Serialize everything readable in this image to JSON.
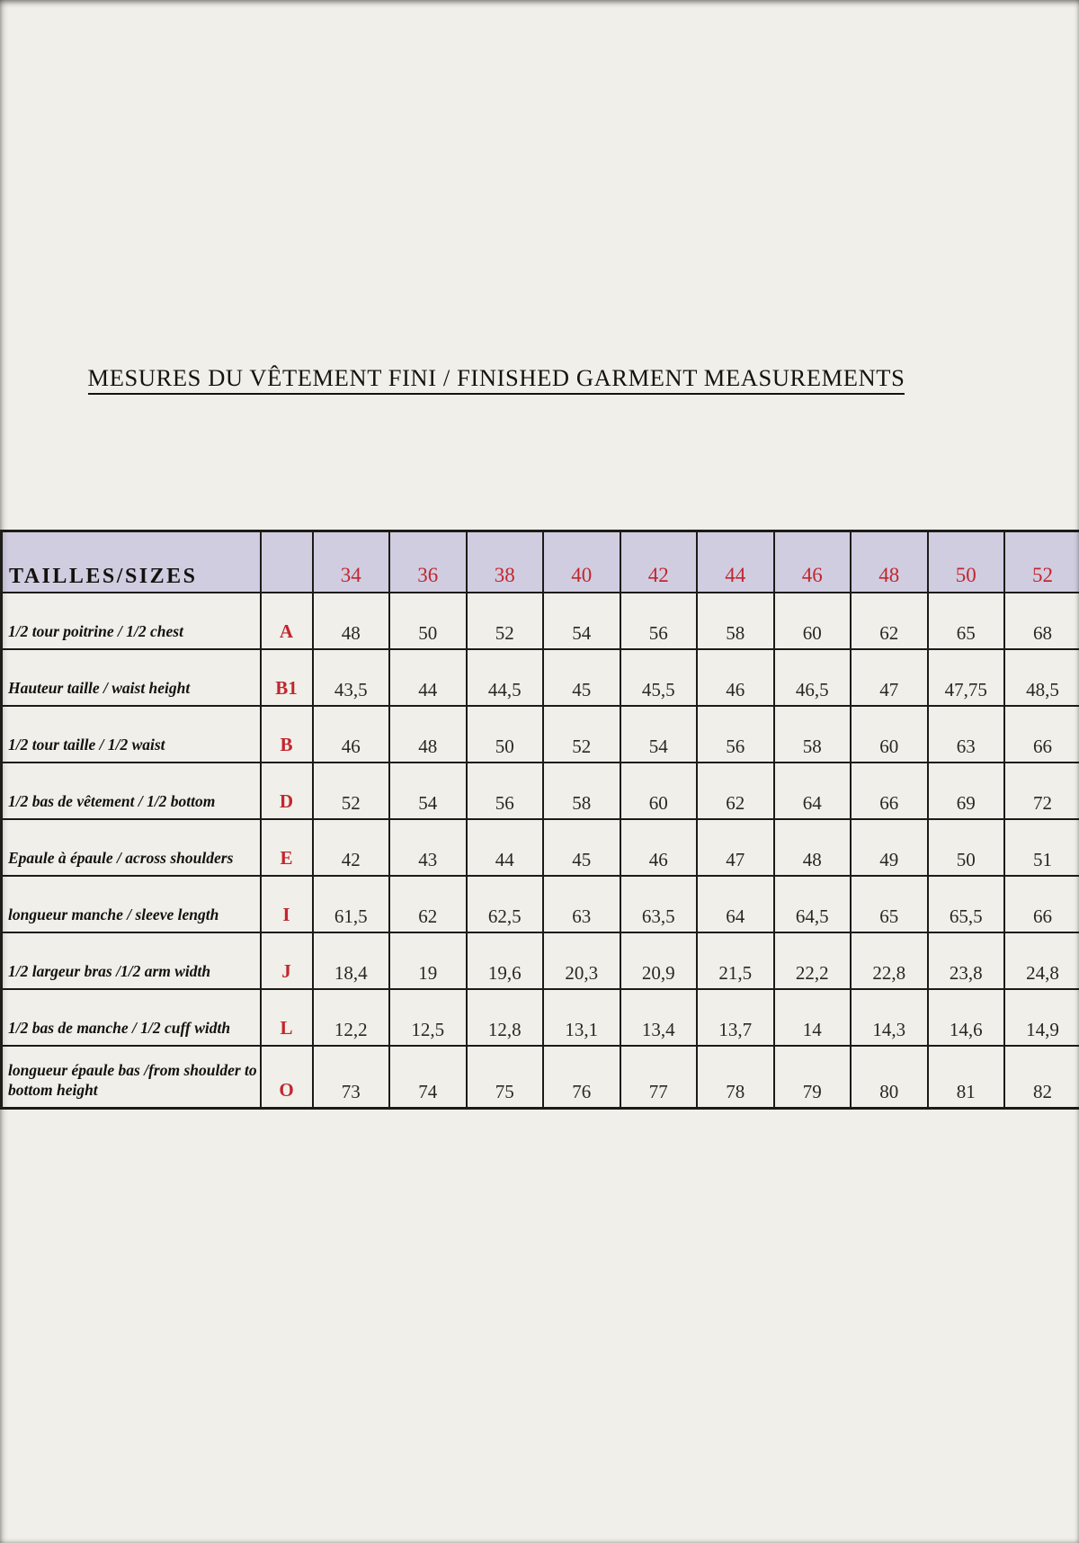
{
  "page": {
    "title": "MESURES DU VÊTEMENT FINI / FINISHED GARMENT MEASUREMENTS"
  },
  "colors": {
    "background": "#f0efe9",
    "header_bg": "#d0cde1",
    "border": "#1d1b18",
    "accent_red": "#c2262e"
  },
  "table": {
    "header": {
      "label": "TAILLES/SIZES",
      "sizes": [
        "34",
        "36",
        "38",
        "40",
        "42",
        "44",
        "46",
        "48",
        "50",
        "52"
      ]
    },
    "rows": [
      {
        "label": "1/2 tour poitrine / 1/2 chest",
        "code": "A",
        "values": [
          "48",
          "50",
          "52",
          "54",
          "56",
          "58",
          "60",
          "62",
          "65",
          "68"
        ]
      },
      {
        "label": "Hauteur taille / waist height",
        "code": "B1",
        "values": [
          "43,5",
          "44",
          "44,5",
          "45",
          "45,5",
          "46",
          "46,5",
          "47",
          "47,75",
          "48,5"
        ]
      },
      {
        "label": "1/2 tour taille / 1/2 waist",
        "code": "B",
        "values": [
          "46",
          "48",
          "50",
          "52",
          "54",
          "56",
          "58",
          "60",
          "63",
          "66"
        ]
      },
      {
        "label": "1/2 bas de vêtement / 1/2 bottom",
        "code": "D",
        "values": [
          "52",
          "54",
          "56",
          "58",
          "60",
          "62",
          "64",
          "66",
          "69",
          "72"
        ]
      },
      {
        "label": "Epaule à épaule / across shoulders",
        "code": "E",
        "values": [
          "42",
          "43",
          "44",
          "45",
          "46",
          "47",
          "48",
          "49",
          "50",
          "51"
        ]
      },
      {
        "label": "longueur manche / sleeve length",
        "code": "I",
        "values": [
          "61,5",
          "62",
          "62,5",
          "63",
          "63,5",
          "64",
          "64,5",
          "65",
          "65,5",
          "66"
        ]
      },
      {
        "label": "1/2 largeur bras /1/2 arm width",
        "code": "J",
        "values": [
          "18,4",
          "19",
          "19,6",
          "20,3",
          "20,9",
          "21,5",
          "22,2",
          "22,8",
          "23,8",
          "24,8"
        ]
      },
      {
        "label": "1/2 bas de manche / 1/2 cuff width",
        "code": "L",
        "values": [
          "12,2",
          "12,5",
          "12,8",
          "13,1",
          "13,4",
          "13,7",
          "14",
          "14,3",
          "14,6",
          "14,9"
        ]
      },
      {
        "label": "longueur épaule bas /from shoulder to bottom height",
        "code": "O",
        "values": [
          "73",
          "74",
          "75",
          "76",
          "77",
          "78",
          "79",
          "80",
          "81",
          "82"
        ]
      }
    ]
  }
}
